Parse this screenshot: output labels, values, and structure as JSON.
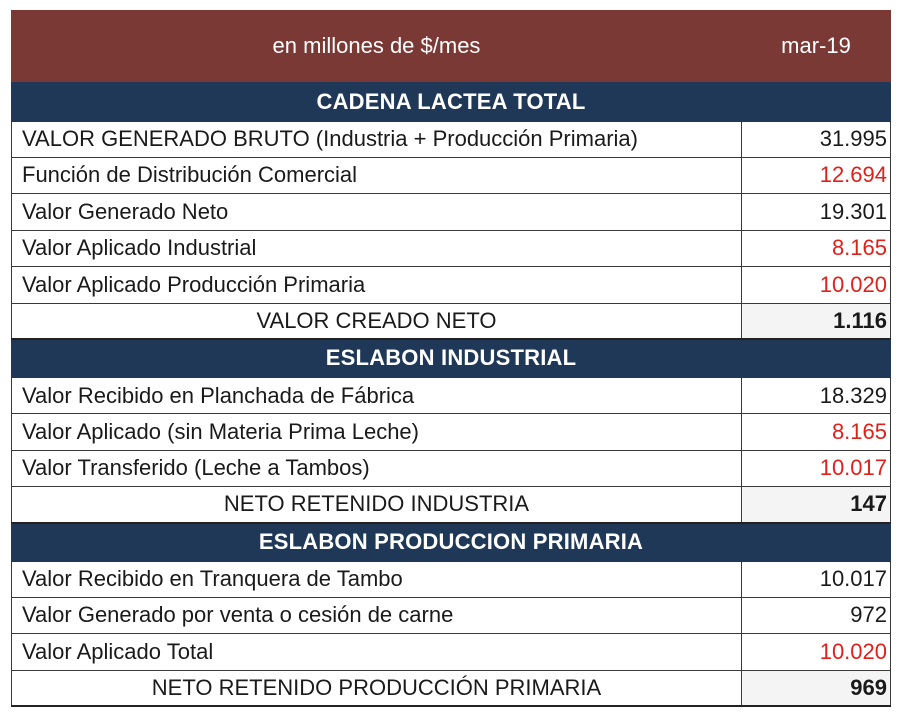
{
  "header": {
    "units": "en millones de $/mes",
    "period": "mar-19"
  },
  "colors": {
    "header_bg": "#7b3935",
    "section_bg": "#1f3857",
    "negative": "#e0201b"
  },
  "sections": [
    {
      "title": "CADENA LACTEA TOTAL",
      "rows": [
        {
          "label": "VALOR GENERADO BRUTO (Industria + Producción Primaria)",
          "value": "31.995",
          "negative": false
        },
        {
          "label": "Función de Distribución Comercial",
          "value": "12.694",
          "negative": true
        },
        {
          "label": "Valor Generado Neto",
          "value": "19.301",
          "negative": false
        },
        {
          "label": "Valor Aplicado Industrial",
          "value": "8.165",
          "negative": true
        },
        {
          "label": "Valor Aplicado Producción Primaria",
          "value": "10.020",
          "negative": true
        }
      ],
      "total": {
        "label": "VALOR CREADO NETO",
        "value": "1.116"
      }
    },
    {
      "title": "ESLABON  INDUSTRIAL",
      "rows": [
        {
          "label": "Valor Recibido en Planchada de Fábrica",
          "value": "18.329",
          "negative": false
        },
        {
          "label": "Valor Aplicado (sin Materia Prima Leche)",
          "value": "8.165",
          "negative": true
        },
        {
          "label": "Valor Transferido (Leche a Tambos)",
          "value": "10.017",
          "negative": true
        }
      ],
      "total": {
        "label": "NETO RETENIDO INDUSTRIA",
        "value": "147"
      }
    },
    {
      "title": "ESLABON  PRODUCCION  PRIMARIA",
      "rows": [
        {
          "label": "Valor Recibido en Tranquera de Tambo",
          "value": "10.017",
          "negative": false
        },
        {
          "label": "Valor Generado por venta o cesión de carne",
          "value": "972",
          "negative": false
        },
        {
          "label": "Valor Aplicado  Total",
          "value": "10.020",
          "negative": true
        }
      ],
      "total": {
        "label": "NETO RETENIDO PRODUCCIÓN PRIMARIA",
        "value": "969"
      }
    }
  ]
}
